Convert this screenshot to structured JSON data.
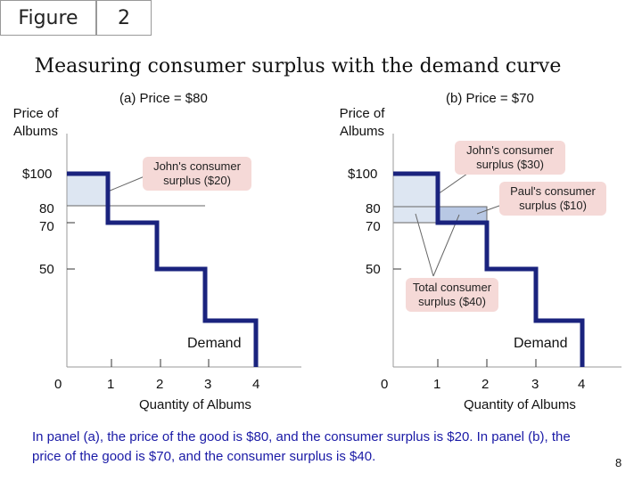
{
  "header": {
    "figure_label": "Figure",
    "figure_number": "2"
  },
  "title": "Measuring consumer surplus with the demand curve",
  "panel_a": {
    "heading": "(a) Price = $80",
    "ylabel": "Price of Albums",
    "xlabel": "Quantity of Albums",
    "y_ticks": [
      "$100",
      "80",
      "70",
      "50"
    ],
    "x_ticks": [
      "0",
      "1",
      "2",
      "3",
      "4"
    ],
    "curve_label": "Demand",
    "annotation": "John's consumer surplus ($20)"
  },
  "panel_b": {
    "heading": "(b) Price = $70",
    "ylabel": "Price of Albums",
    "xlabel": "Quantity of Albums",
    "y_ticks": [
      "$100",
      "80",
      "70",
      "50"
    ],
    "x_ticks": [
      "0",
      "1",
      "2",
      "3",
      "4"
    ],
    "curve_label": "Demand",
    "annotation_john": "John's consumer surplus ($30)",
    "annotation_paul": "Paul's consumer surplus ($10)",
    "annotation_total": "Total consumer surplus ($40)"
  },
  "caption": "In panel (a), the price of the good is $80, and the consumer  surplus is $20. In panel (b), the price of the good is $70, and the consumer surplus is $40.",
  "page_number": "8",
  "colors": {
    "curve": "#1a237e",
    "surplus_fill": "#dde6f2",
    "surplus_fill_paul": "#b8c8e4",
    "note_bg": "#f5d9d7",
    "caption_text": "#1a1aa6"
  }
}
